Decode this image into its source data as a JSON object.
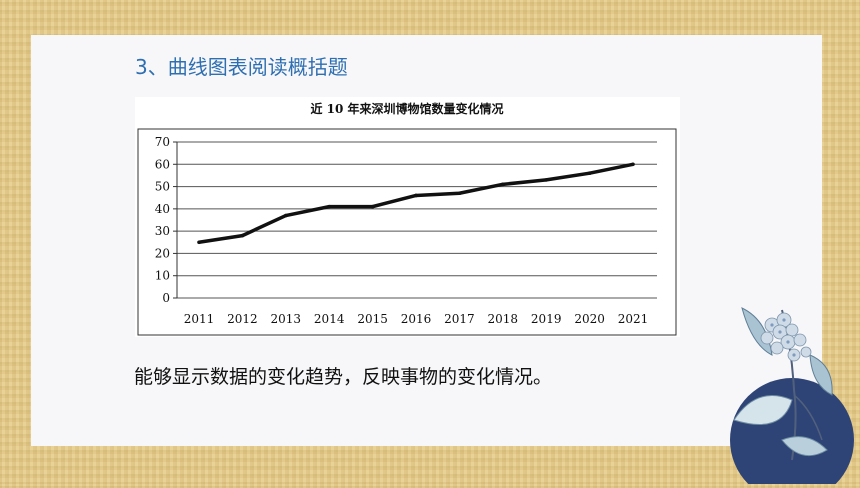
{
  "slide": {
    "heading": "3、曲线图表阅读概括题",
    "caption": "能够显示数据的变化趋势，反映事物的变化情况。"
  },
  "decoration": {
    "icon": "hydrangea-flower-icon"
  },
  "chart_data": {
    "type": "line",
    "title": "近 10 年来深圳博物馆数量变化情况",
    "categories": [
      "2011",
      "2012",
      "2013",
      "2014",
      "2015",
      "2016",
      "2017",
      "2018",
      "2019",
      "2020",
      "2021"
    ],
    "series": [
      {
        "values": [
          25,
          28,
          37,
          41,
          41,
          46,
          47,
          51,
          53,
          56,
          60
        ]
      }
    ],
    "yticks": [
      "0",
      "10",
      "20",
      "30",
      "40",
      "50",
      "60",
      "70"
    ],
    "ylim": [
      0,
      70
    ],
    "grid": true,
    "xlabel": "",
    "ylabel": "",
    "colors": {
      "line": "#111111",
      "grid": "#555555"
    }
  }
}
